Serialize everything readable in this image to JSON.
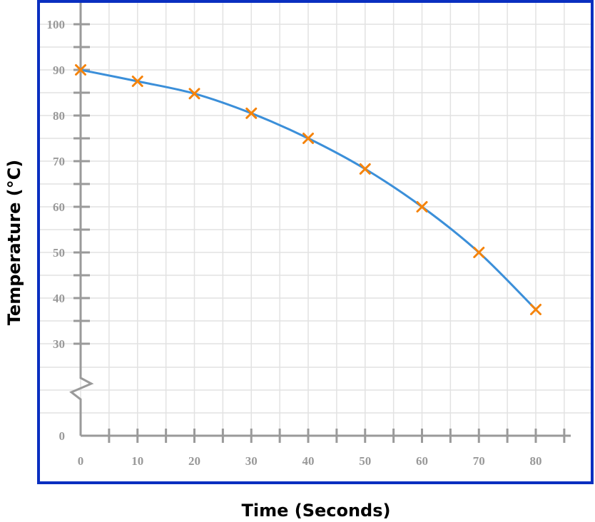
{
  "chart_data": {
    "type": "line",
    "title": "",
    "xlabel": "Time (Seconds)",
    "ylabel": "Temperature (°C)",
    "x": [
      0,
      10,
      20,
      30,
      40,
      50,
      60,
      70,
      80
    ],
    "series": [
      {
        "values": [
          90,
          87.5,
          84.8,
          80.5,
          75,
          68.3,
          60,
          50,
          37.5
        ],
        "color": "#3b8fd9",
        "marker": "x",
        "marker_color": "#f5830a"
      }
    ],
    "xlim": [
      0,
      85
    ],
    "ylim": [
      0,
      100
    ],
    "xticks": [
      0,
      10,
      20,
      30,
      40,
      50,
      60,
      70,
      80
    ],
    "yticks": [
      0,
      30,
      40,
      50,
      60,
      70,
      80,
      90,
      100
    ],
    "y_axis_break": "between 0 and 30",
    "grid": true,
    "frame_color": "#0a2fc0"
  }
}
